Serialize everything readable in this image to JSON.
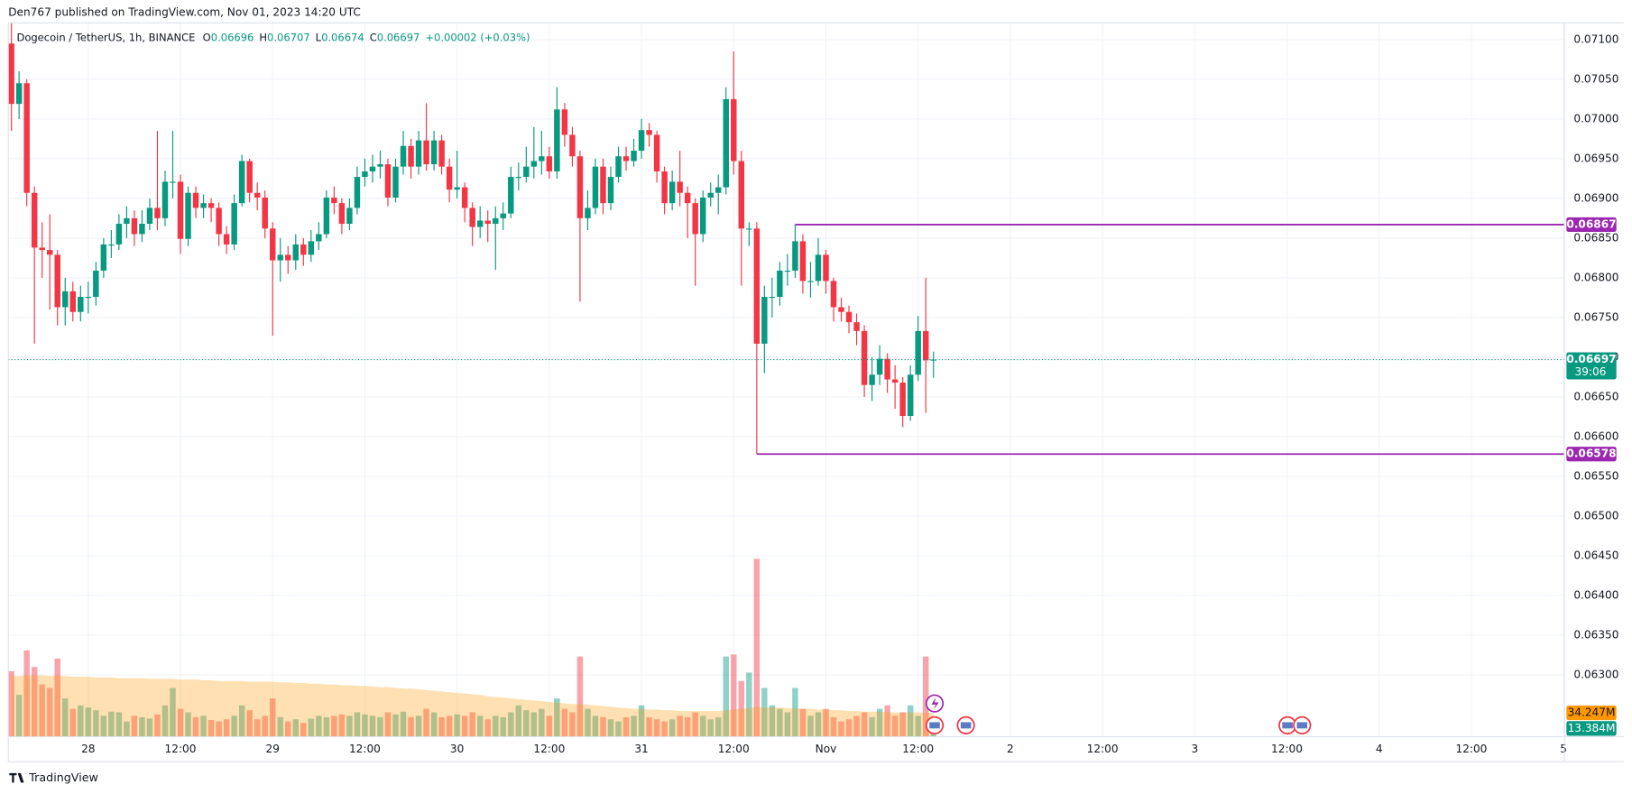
{
  "publisher": "Den767 published on TradingView.com, Nov 01, 2023 14:20 UTC",
  "footer": "TradingView",
  "chart_data": {
    "type": "candlestick",
    "symbol": "Dogecoin / TetherUS, 1h, BINANCE",
    "legend_o": "O",
    "legend_h": "H",
    "legend_l": "L",
    "legend_c": "C",
    "change": "+0.00002 (+0.03%)",
    "up_color": "#089981",
    "down_color": "#f23645",
    "level_color": "#9c27b0",
    "ma_color": "#ff9800",
    "grid": true,
    "open": [
      0.07095,
      0.07019,
      0.07045,
      0.06907,
      0.06838,
      0.06835,
      0.06829,
      0.06763,
      0.06783,
      0.06757,
      0.06776,
      0.06776,
      0.06809,
      0.06842,
      0.06842,
      0.06868,
      0.06875,
      0.06855,
      0.06868,
      0.06888,
      0.06875,
      0.06921,
      0.06921,
      0.06849,
      0.06907,
      0.06888,
      0.06894,
      0.06888,
      0.06855,
      0.06842,
      0.06894,
      0.06947,
      0.06907,
      0.06901,
      0.06862,
      0.06822,
      0.06829,
      0.06822,
      0.06842,
      0.06829,
      0.06846,
      0.06855,
      0.06901,
      0.06894,
      0.06868,
      0.06888,
      0.06927,
      0.06934,
      0.0694,
      0.06943,
      0.06901,
      0.0694,
      0.06966,
      0.0694,
      0.06973,
      0.06943,
      0.06973,
      0.0694,
      0.06911,
      0.06914,
      0.06888,
      0.06864,
      0.06872,
      0.06868,
      0.06875,
      0.06881,
      0.06927,
      0.06927,
      0.0694,
      0.06947,
      0.06953,
      0.06934,
      0.07012,
      0.0698,
      0.06953,
      0.06875,
      0.06888,
      0.0694,
      0.06894,
      0.06927,
      0.06953,
      0.06947,
      0.0696,
      0.06986,
      0.0698,
      0.06934,
      0.06894,
      0.06921,
      0.06907,
      0.06894,
      0.06855,
      0.06901,
      0.06907,
      0.06914,
      0.07025,
      0.06947,
      0.06862,
      0.06862,
      0.06717,
      0.06776,
      0.06776,
      0.06809,
      0.06809,
      0.06846,
      0.06796,
      0.06796,
      0.06829,
      0.06796,
      0.06763,
      0.06757,
      0.06744,
      0.06733,
      0.06665,
      0.06678,
      0.06698,
      0.06672,
      0.06668,
      0.06626,
      0.06678,
      0.06733,
      0.06696
    ],
    "high": [
      0.07121,
      0.0706,
      0.0705,
      0.06915,
      0.0687,
      0.0688,
      0.06835,
      0.068,
      0.06795,
      0.0679,
      0.06795,
      0.0682,
      0.0685,
      0.0686,
      0.0688,
      0.0689,
      0.06885,
      0.06885,
      0.069,
      0.06985,
      0.06935,
      0.06985,
      0.0693,
      0.06915,
      0.06915,
      0.06905,
      0.069,
      0.06895,
      0.06865,
      0.06905,
      0.06955,
      0.0695,
      0.0692,
      0.0691,
      0.0687,
      0.0685,
      0.0684,
      0.06855,
      0.0685,
      0.0686,
      0.0687,
      0.0691,
      0.06915,
      0.069,
      0.069,
      0.0694,
      0.0695,
      0.06955,
      0.0696,
      0.0695,
      0.0695,
      0.06985,
      0.06975,
      0.06985,
      0.0702,
      0.06985,
      0.0698,
      0.0695,
      0.0696,
      0.0692,
      0.06895,
      0.0689,
      0.06885,
      0.0689,
      0.06895,
      0.0694,
      0.06945,
      0.06965,
      0.0699,
      0.06985,
      0.06965,
      0.0704,
      0.0702,
      0.0699,
      0.0696,
      0.0691,
      0.0695,
      0.0695,
      0.0694,
      0.06965,
      0.06965,
      0.06975,
      0.07,
      0.06995,
      0.06985,
      0.0694,
      0.06935,
      0.0696,
      0.06915,
      0.069,
      0.0691,
      0.0692,
      0.0693,
      0.0704,
      0.07085,
      0.0696,
      0.0687,
      0.0687,
      0.0679,
      0.068,
      0.0682,
      0.0683,
      0.06867,
      0.06855,
      0.0682,
      0.0685,
      0.06835,
      0.068,
      0.06775,
      0.06765,
      0.06755,
      0.0674,
      0.067,
      0.06715,
      0.06705,
      0.0669,
      0.06675,
      0.0669,
      0.06752,
      0.068,
      0.06707
    ],
    "low": [
      0.06985,
      0.07,
      0.0689,
      0.06717,
      0.068,
      0.0676,
      0.0674,
      0.0674,
      0.06745,
      0.06745,
      0.06755,
      0.06765,
      0.068,
      0.06825,
      0.06835,
      0.0685,
      0.0684,
      0.06845,
      0.0686,
      0.0686,
      0.06865,
      0.069,
      0.0683,
      0.0684,
      0.06875,
      0.06875,
      0.0687,
      0.0684,
      0.0683,
      0.06835,
      0.0689,
      0.06895,
      0.06885,
      0.0685,
      0.06727,
      0.06795,
      0.06805,
      0.0681,
      0.06815,
      0.0682,
      0.06835,
      0.0685,
      0.0688,
      0.06855,
      0.0686,
      0.0688,
      0.06915,
      0.0692,
      0.06925,
      0.0689,
      0.06895,
      0.0693,
      0.06925,
      0.0693,
      0.06935,
      0.06935,
      0.0693,
      0.06895,
      0.069,
      0.0687,
      0.0684,
      0.0685,
      0.06845,
      0.0681,
      0.0686,
      0.06875,
      0.0691,
      0.0692,
      0.06925,
      0.0693,
      0.06925,
      0.06925,
      0.06965,
      0.0694,
      0.0677,
      0.0686,
      0.0688,
      0.0688,
      0.06885,
      0.0692,
      0.06935,
      0.0694,
      0.0695,
      0.06965,
      0.0692,
      0.0688,
      0.06885,
      0.0689,
      0.0685,
      0.0679,
      0.06845,
      0.0689,
      0.0688,
      0.06905,
      0.0693,
      0.0679,
      0.0684,
      0.06578,
      0.0668,
      0.0675,
      0.06765,
      0.0679,
      0.068,
      0.0678,
      0.06775,
      0.0679,
      0.0678,
      0.06745,
      0.06745,
      0.0673,
      0.06715,
      0.0665,
      0.06645,
      0.06665,
      0.06655,
      0.06635,
      0.06612,
      0.0662,
      0.0667,
      0.0663,
      0.06674
    ],
    "close": [
      0.07019,
      0.07045,
      0.06907,
      0.06838,
      0.06835,
      0.06829,
      0.06763,
      0.06783,
      0.06757,
      0.06776,
      0.06776,
      0.06809,
      0.06842,
      0.06842,
      0.06868,
      0.06875,
      0.06855,
      0.06868,
      0.06888,
      0.06875,
      0.06921,
      0.06921,
      0.06849,
      0.06907,
      0.06888,
      0.06894,
      0.06888,
      0.06855,
      0.06842,
      0.06894,
      0.06947,
      0.06907,
      0.06901,
      0.06862,
      0.06822,
      0.06829,
      0.06822,
      0.06842,
      0.06829,
      0.06846,
      0.06855,
      0.06901,
      0.06894,
      0.06868,
      0.06888,
      0.06927,
      0.06934,
      0.0694,
      0.06943,
      0.06901,
      0.0694,
      0.06966,
      0.0694,
      0.06973,
      0.06943,
      0.06973,
      0.0694,
      0.06911,
      0.06914,
      0.06888,
      0.06864,
      0.06872,
      0.06868,
      0.06875,
      0.06881,
      0.06927,
      0.06927,
      0.0694,
      0.06947,
      0.06953,
      0.06934,
      0.07012,
      0.0698,
      0.06953,
      0.06875,
      0.06888,
      0.0694,
      0.06894,
      0.06927,
      0.06953,
      0.06947,
      0.0696,
      0.06986,
      0.0698,
      0.06934,
      0.06894,
      0.06921,
      0.06907,
      0.06894,
      0.06855,
      0.06901,
      0.06907,
      0.06914,
      0.07025,
      0.06947,
      0.06862,
      0.06862,
      0.06717,
      0.06776,
      0.06776,
      0.06809,
      0.06809,
      0.06846,
      0.06796,
      0.06796,
      0.06829,
      0.06796,
      0.06763,
      0.06757,
      0.06744,
      0.06733,
      0.06665,
      0.06678,
      0.06698,
      0.06672,
      0.06668,
      0.06626,
      0.06678,
      0.06733,
      0.06696,
      0.06697
    ],
    "volume": [
      94,
      60,
      124,
      100,
      75,
      70,
      112,
      55,
      40,
      45,
      42,
      38,
      30,
      36,
      35,
      22,
      30,
      28,
      26,
      32,
      45,
      70,
      40,
      35,
      28,
      30,
      24,
      22,
      25,
      30,
      45,
      38,
      25,
      30,
      55,
      28,
      22,
      25,
      20,
      26,
      30,
      28,
      30,
      32,
      30,
      35,
      32,
      30,
      28,
      35,
      32,
      36,
      28,
      30,
      40,
      35,
      28,
      30,
      32,
      30,
      35,
      30,
      25,
      30,
      28,
      35,
      45,
      38,
      35,
      40,
      30,
      55,
      40,
      35,
      115,
      40,
      30,
      28,
      25,
      22,
      28,
      30,
      45,
      28,
      25,
      22,
      25,
      30,
      28,
      35,
      30,
      25,
      28,
      115,
      118,
      80,
      92,
      255,
      70,
      45,
      40,
      35,
      70,
      40,
      30,
      35,
      40,
      28,
      22,
      25,
      30,
      35,
      28,
      40,
      45,
      30,
      35,
      45,
      30,
      115,
      13.384
    ],
    "volume_ma": [
      87,
      87,
      88,
      88,
      88,
      87,
      88,
      87,
      86,
      86,
      86,
      85,
      85,
      85,
      84,
      84,
      84,
      84,
      83,
      83,
      83,
      83,
      82,
      82,
      82,
      81,
      81,
      80,
      80,
      80,
      80,
      79,
      79,
      79,
      79,
      78,
      78,
      77,
      77,
      76,
      76,
      75,
      75,
      74,
      74,
      73,
      73,
      72,
      71,
      71,
      70,
      69,
      69,
      68,
      67,
      66,
      65,
      64,
      63,
      62,
      61,
      60,
      58,
      57,
      56,
      55,
      54,
      53,
      52,
      51,
      50,
      49,
      48,
      47,
      47,
      46,
      45,
      44,
      43,
      42,
      41,
      40,
      40,
      39,
      39,
      38,
      38,
      37,
      37,
      37,
      37,
      37,
      37,
      38,
      39,
      40,
      41,
      43,
      42,
      42,
      42,
      41,
      41,
      40,
      40,
      39,
      39,
      38,
      38,
      37,
      37,
      36,
      36,
      36,
      35,
      35,
      35,
      35,
      35,
      34.5,
      34.247
    ],
    "volume_label": "13.384M",
    "volume_ma_label": "34.247M",
    "last_price_label": "0.06697",
    "countdown": "39:06",
    "levels": [
      {
        "value": 0.06867,
        "label": "0.06867",
        "start": 102
      },
      {
        "value": 0.06578,
        "label": "0.06578",
        "start": 97
      }
    ],
    "xlim": [
      -0.4,
      202.1
    ],
    "xticks": [
      {
        "value": 10,
        "label": "28"
      },
      {
        "value": 22,
        "label": "12:00"
      },
      {
        "value": 34,
        "label": "29"
      },
      {
        "value": 46,
        "label": "12:00"
      },
      {
        "value": 58,
        "label": "30"
      },
      {
        "value": 70,
        "label": "12:00"
      },
      {
        "value": 82,
        "label": "31"
      },
      {
        "value": 94,
        "label": "12:00"
      },
      {
        "value": 106,
        "label": "Nov"
      },
      {
        "value": 118,
        "label": "12:00"
      },
      {
        "value": 130,
        "label": "2"
      },
      {
        "value": 142,
        "label": "12:00"
      },
      {
        "value": 154,
        "label": "3"
      },
      {
        "value": 166,
        "label": "12:00"
      },
      {
        "value": 178,
        "label": "4"
      },
      {
        "value": 190,
        "label": "12:00"
      },
      {
        "value": 202,
        "label": "5"
      }
    ],
    "ylim": [
      0.06222,
      0.07121
    ],
    "yticks": [
      {
        "value": 0.063,
        "label": "0.06300"
      },
      {
        "value": 0.0635,
        "label": "0.06350"
      },
      {
        "value": 0.064,
        "label": "0.06400"
      },
      {
        "value": 0.0645,
        "label": "0.06450"
      },
      {
        "value": 0.065,
        "label": "0.06500"
      },
      {
        "value": 0.0655,
        "label": "0.06550"
      },
      {
        "value": 0.066,
        "label": "0.06600"
      },
      {
        "value": 0.0665,
        "label": "0.06650"
      },
      {
        "value": 0.067,
        "label": "0.06700"
      },
      {
        "value": 0.0675,
        "label": "0.06750"
      },
      {
        "value": 0.068,
        "label": "0.06800"
      },
      {
        "value": 0.0685,
        "label": "0.06850"
      },
      {
        "value": 0.069,
        "label": "0.06900"
      },
      {
        "value": 0.0695,
        "label": "0.06950"
      },
      {
        "value": 0.07,
        "label": "0.07000"
      },
      {
        "value": 0.0705,
        "label": "0.07050"
      },
      {
        "value": 0.071,
        "label": "0.07100"
      }
    ]
  }
}
